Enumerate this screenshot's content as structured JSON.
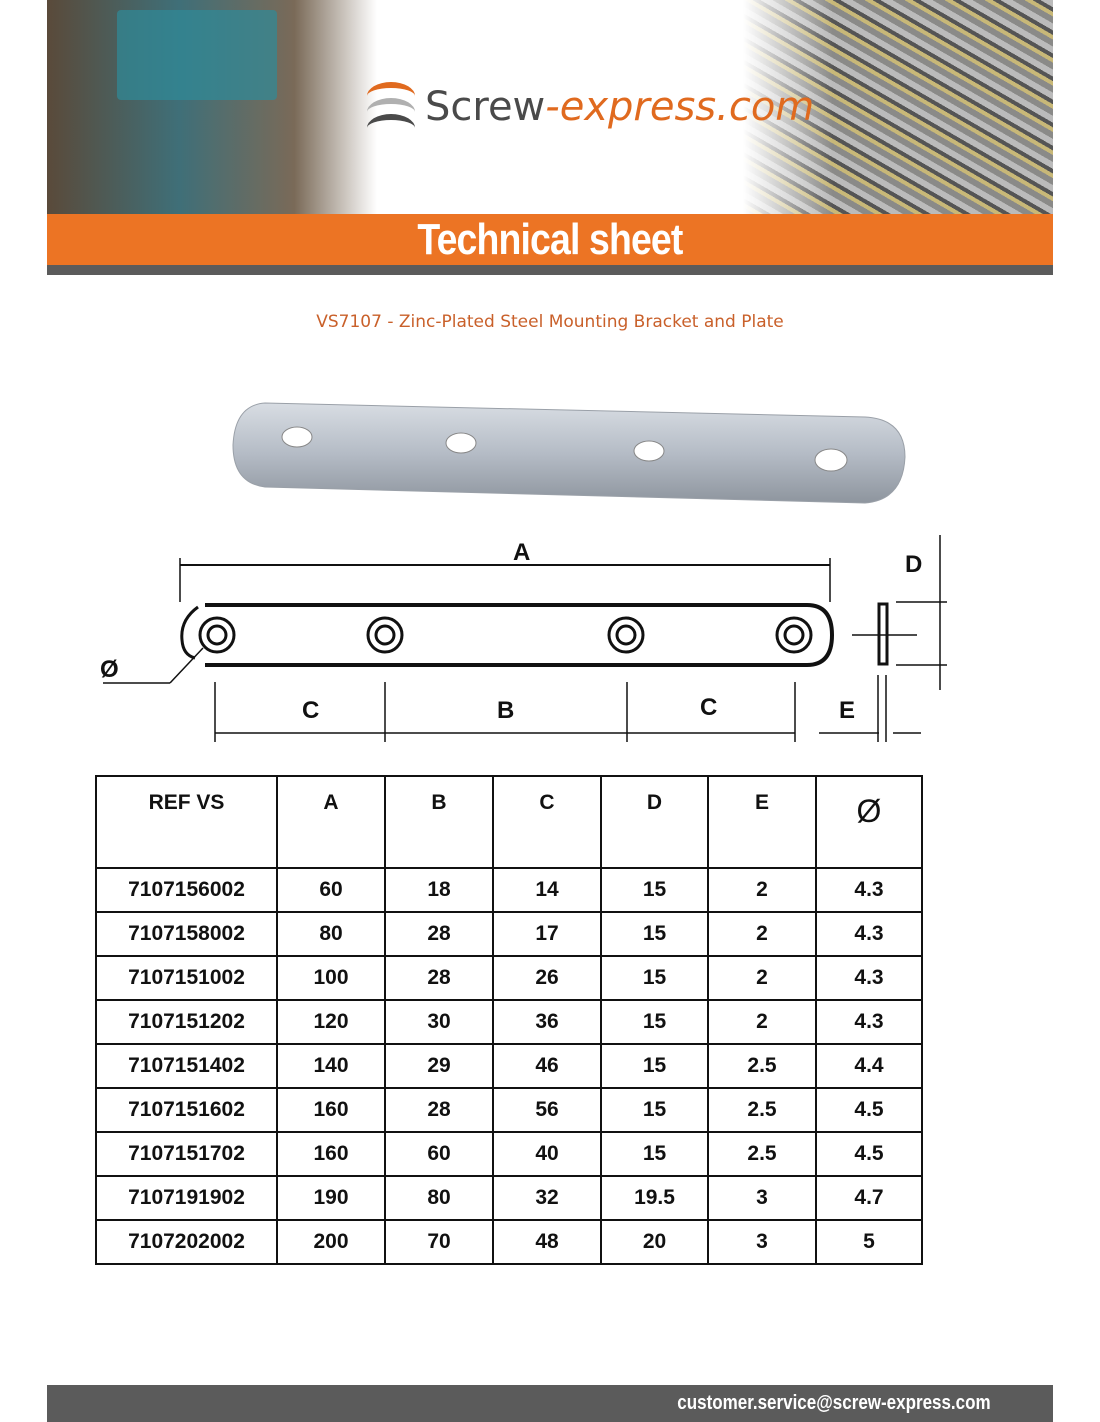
{
  "header": {
    "logo_part1": "Screw",
    "logo_part2": "-express.com",
    "banner_title": "Technical sheet",
    "colors": {
      "orange": "#ec7424",
      "grey": "#5b5b5b"
    }
  },
  "product": {
    "title": "VS7107 - Zinc-Plated Steel Mounting Bracket and Plate"
  },
  "diagram": {
    "labels": {
      "A": "A",
      "B": "B",
      "C": "C",
      "D": "D",
      "E": "E",
      "diameter": "Ø"
    }
  },
  "table": {
    "headers": [
      "REF VS",
      "A",
      "B",
      "C",
      "D",
      "E",
      "Ø"
    ],
    "rows": [
      [
        "7107156002",
        "60",
        "18",
        "14",
        "15",
        "2",
        "4.3"
      ],
      [
        "7107158002",
        "80",
        "28",
        "17",
        "15",
        "2",
        "4.3"
      ],
      [
        "7107151002",
        "100",
        "28",
        "26",
        "15",
        "2",
        "4.3"
      ],
      [
        "7107151202",
        "120",
        "30",
        "36",
        "15",
        "2",
        "4.3"
      ],
      [
        "7107151402",
        "140",
        "29",
        "46",
        "15",
        "2.5",
        "4.4"
      ],
      [
        "7107151602",
        "160",
        "28",
        "56",
        "15",
        "2.5",
        "4.5"
      ],
      [
        "7107151702",
        "160",
        "60",
        "40",
        "15",
        "2.5",
        "4.5"
      ],
      [
        "7107191902",
        "190",
        "80",
        "32",
        "19.5",
        "3",
        "4.7"
      ],
      [
        "7107202002",
        "200",
        "70",
        "48",
        "20",
        "3",
        "5"
      ]
    ]
  },
  "footer": {
    "email": "customer.service@screw-express.com"
  }
}
